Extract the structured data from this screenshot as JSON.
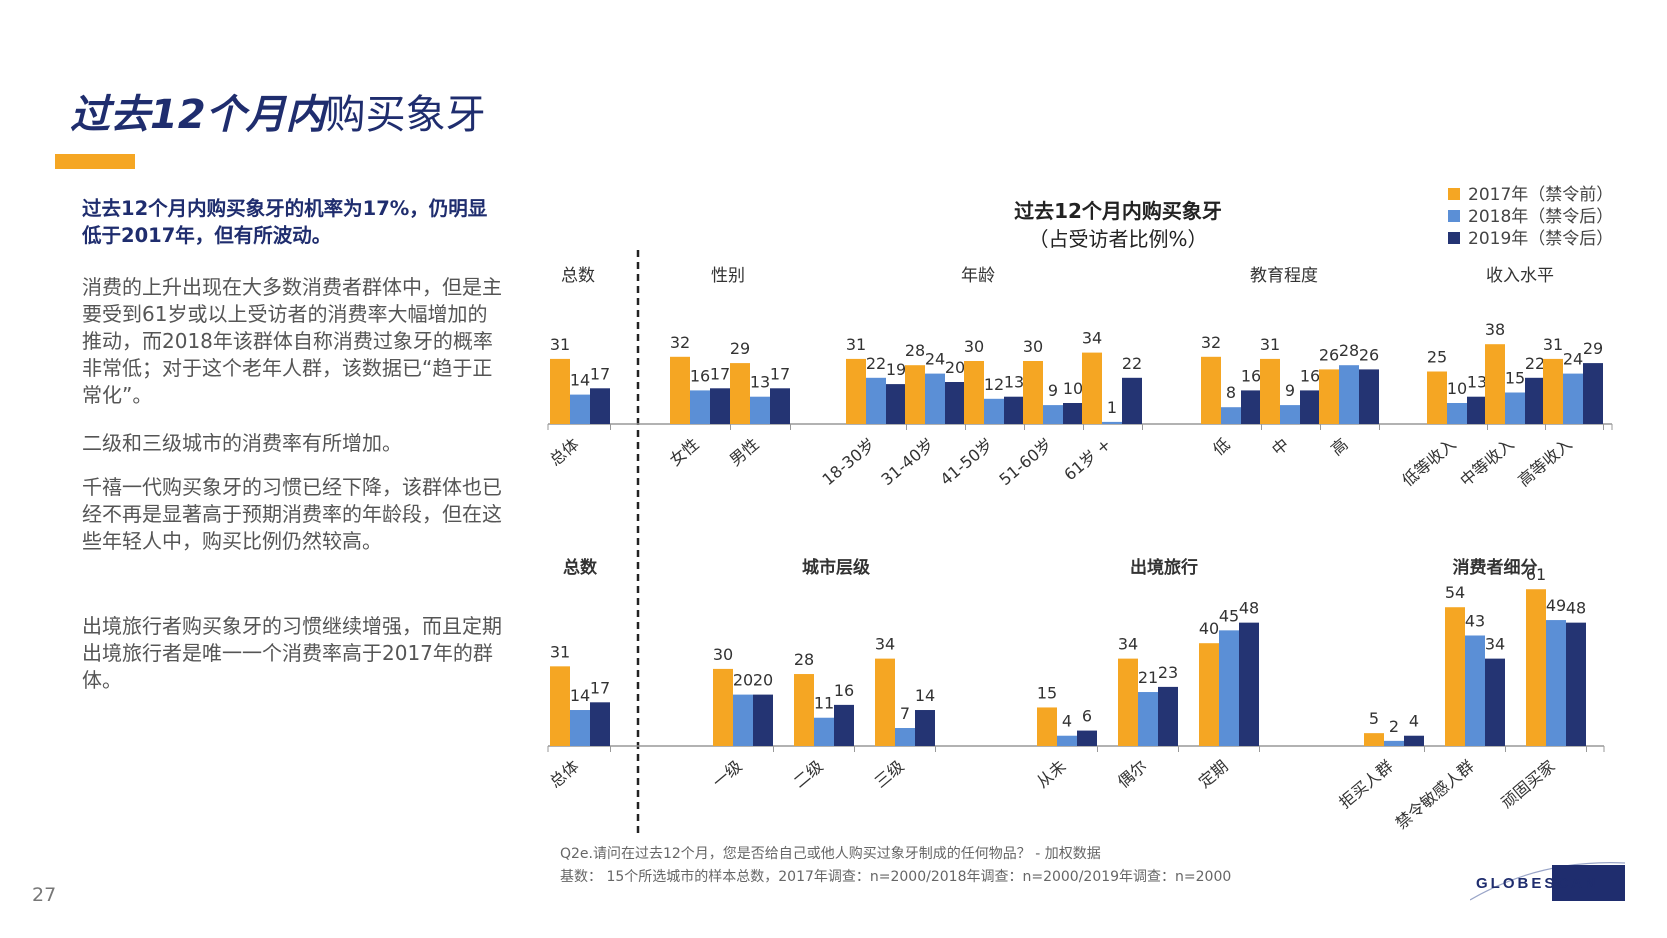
{
  "page": {
    "title_bold": "过去12个月内",
    "title_rest": "购买象牙",
    "headline": "过去12个月内购买象牙的机率为17%，仍明显低于2017年，但有所波动。",
    "paragraphs": [
      "消费的上升出现在大多数消费者群体中，但是主要受到61岁或以上受访者的消费率大幅增加的推动，而2018年该群体自称消费过象牙的概率非常低；对于这个老年人群，该数据已“趋于正常化”。",
      "二级和三级城市的消费率有所增加。",
      "千禧一代购买象牙的习惯已经下降，该群体也已经不再是显著高于预期消费率的年龄段，但在这些年轻人中，购买比例仍然较高。",
      "出境旅行者购买象牙的习惯继续增强，而且定期出境旅行者是唯一一个消费率高于2017年的群体。"
    ],
    "page_number": "27",
    "footer_line1": "Q2e.请问在过去12个月，您是否给自己或他人购买过象牙制成的任何物品？ - 加权数据",
    "footer_line2": "基数： 15个所选城市的样本总数，2017年调查：n=2000/2018年调查：n=2000/2019年调查：n=2000",
    "logo_text": "GLOBESCAN"
  },
  "chart_data": {
    "type": "bar",
    "title": "过去12个月内购买象牙",
    "subtitle": "（占受访者比例%）",
    "series": [
      {
        "name": "2017年（禁令前）",
        "color": "#f5a623"
      },
      {
        "name": "2018年（禁令后）",
        "color": "#5b8fd6"
      },
      {
        "name": "2019年（禁令后）",
        "color": "#243473"
      }
    ],
    "panels": [
      {
        "row": 1,
        "groups": [
          {
            "label": "总数",
            "categories": [
              {
                "name": "总体",
                "values": [
                  31,
                  14,
                  17
                ]
              }
            ]
          },
          {
            "label": "性别",
            "categories": [
              {
                "name": "女性",
                "values": [
                  32,
                  16,
                  17
                ]
              },
              {
                "name": "男性",
                "values": [
                  29,
                  13,
                  17
                ]
              }
            ]
          },
          {
            "label": "年龄",
            "categories": [
              {
                "name": "18-30岁",
                "values": [
                  31,
                  22,
                  19
                ]
              },
              {
                "name": "31-40岁",
                "values": [
                  28,
                  24,
                  20
                ]
              },
              {
                "name": "41-50岁",
                "values": [
                  30,
                  12,
                  13
                ]
              },
              {
                "name": "51-60岁",
                "values": [
                  30,
                  9,
                  10
                ]
              },
              {
                "name": "61岁 +",
                "values": [
                  34,
                  1,
                  22
                ]
              }
            ]
          },
          {
            "label": "教育程度",
            "categories": [
              {
                "name": "低",
                "values": [
                  32,
                  8,
                  16
                ]
              },
              {
                "name": "中",
                "values": [
                  31,
                  9,
                  16
                ]
              },
              {
                "name": "高",
                "values": [
                  26,
                  28,
                  26
                ]
              }
            ]
          },
          {
            "label": "收入水平",
            "categories": [
              {
                "name": "低等收入",
                "values": [
                  25,
                  10,
                  13
                ]
              },
              {
                "name": "中等收入",
                "values": [
                  38,
                  15,
                  22
                ]
              },
              {
                "name": "高等收入",
                "values": [
                  31,
                  24,
                  29
                ]
              }
            ]
          }
        ]
      },
      {
        "row": 2,
        "groups": [
          {
            "label": "总数",
            "categories": [
              {
                "name": "总体",
                "values": [
                  31,
                  14,
                  17
                ]
              }
            ]
          },
          {
            "label": "城市层级",
            "categories": [
              {
                "name": "一级",
                "values": [
                  30,
                  20,
                  20
                ]
              },
              {
                "name": "二级",
                "values": [
                  28,
                  11,
                  16
                ]
              },
              {
                "name": "三级",
                "values": [
                  34,
                  7,
                  14
                ]
              }
            ]
          },
          {
            "label": "出境旅行",
            "categories": [
              {
                "name": "从未",
                "values": [
                  15,
                  4,
                  6
                ]
              },
              {
                "name": "偶尔",
                "values": [
                  34,
                  21,
                  23
                ]
              },
              {
                "name": "定期",
                "values": [
                  40,
                  45,
                  48
                ]
              }
            ]
          },
          {
            "label": "消费者细分",
            "categories": [
              {
                "name": "拒买人群",
                "values": [
                  5,
                  2,
                  4
                ]
              },
              {
                "name": "禁令敏感人群",
                "values": [
                  54,
                  43,
                  34
                ]
              },
              {
                "name": "顽固买家",
                "values": [
                  61,
                  49,
                  48
                ]
              }
            ]
          }
        ]
      }
    ]
  }
}
